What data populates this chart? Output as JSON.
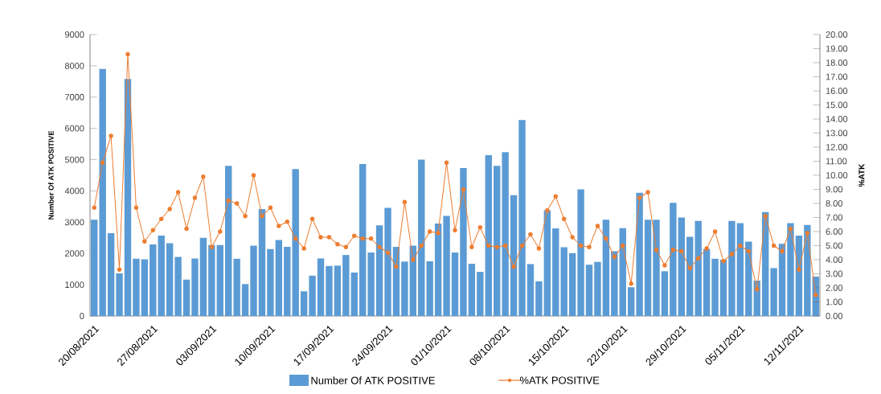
{
  "chart_data": {
    "type": "bar",
    "categories": [
      "20/08/2021",
      null,
      null,
      null,
      null,
      null,
      null,
      "27/08/2021",
      null,
      null,
      null,
      null,
      null,
      null,
      "03/09/2021",
      null,
      null,
      null,
      null,
      null,
      null,
      "10/09/2021",
      null,
      null,
      null,
      null,
      null,
      null,
      "17/09/2021",
      null,
      null,
      null,
      null,
      null,
      null,
      "24/09/2021",
      null,
      null,
      null,
      null,
      null,
      null,
      "01/10/2021",
      null,
      null,
      null,
      null,
      null,
      null,
      "08/10/2021",
      null,
      null,
      null,
      null,
      null,
      null,
      "15/10/2021",
      null,
      null,
      null,
      null,
      null,
      null,
      "22/10/2021",
      null,
      null,
      null,
      null,
      null,
      null,
      "29/10/2021",
      null,
      null,
      null,
      null,
      null,
      null,
      "05/11/2021",
      null,
      null,
      null,
      null,
      null,
      null,
      "12/11/2021",
      null,
      null
    ],
    "ylabel": "Number Of ATK POSITIVE",
    "y2label": "%ATK",
    "ylim": [
      0,
      9000
    ],
    "yticks": [
      0,
      1000,
      2000,
      3000,
      4000,
      5000,
      6000,
      7000,
      8000,
      9000
    ],
    "y2lim": [
      0,
      20
    ],
    "y2ticks": [
      {
        "value": 0,
        "label": "0.00"
      },
      {
        "value": 1,
        "label": "1.00"
      },
      {
        "value": 2,
        "label": "2.00"
      },
      {
        "value": 3,
        "label": "3.00"
      },
      {
        "value": 4,
        "label": "4.00"
      },
      {
        "value": 5,
        "label": "5.00"
      },
      {
        "value": 6,
        "label": "6.00"
      },
      {
        "value": 7,
        "label": "7.00"
      },
      {
        "value": 8,
        "label": "8.00"
      },
      {
        "value": 9,
        "label": "9.00"
      },
      {
        "value": 10,
        "label": "10.00"
      },
      {
        "value": 11,
        "label": "11.00"
      },
      {
        "value": 12,
        "label": "12.00"
      },
      {
        "value": 13,
        "label": "13.00"
      },
      {
        "value": 14,
        "label": "14.00"
      },
      {
        "value": 15,
        "label": "15.00"
      },
      {
        "value": 16,
        "label": "16.00"
      },
      {
        "value": 17,
        "label": "17.00"
      },
      {
        "value": 18,
        "label": "18.00"
      },
      {
        "value": 19,
        "label": "19.00"
      },
      {
        "value": 20,
        "label": "20.00"
      }
    ],
    "legend": "bottom",
    "marker": "circle",
    "series": [
      {
        "name": "Number Of ATK POSITIVE",
        "color": "#5b9bd5",
        "values": [
          3080,
          7900,
          2650,
          1360,
          7580,
          1830,
          1810,
          2290,
          2570,
          2330,
          1890,
          1160,
          1840,
          2500,
          2270,
          2270,
          4800,
          1830,
          1020,
          2250,
          3420,
          2140,
          2430,
          2210,
          4700,
          790,
          1290,
          1840,
          1600,
          1610,
          1950,
          1390,
          4860,
          2030,
          2900,
          3460,
          2210,
          1740,
          2250,
          5000,
          1750,
          2960,
          3200,
          2030,
          4730,
          1670,
          1410,
          5140,
          4800,
          5240,
          3860,
          6270,
          1660,
          1110,
          3380,
          2800,
          2200,
          2010,
          4050,
          1640,
          1730,
          3080,
          2070,
          2810,
          920,
          3940,
          3080,
          3080,
          1430,
          3620,
          3150,
          2530,
          3040,
          2140,
          1830,
          1800,
          3040,
          2970,
          2380,
          1130,
          3320,
          1530,
          2310,
          2970,
          2570,
          2910,
          1260
        ]
      },
      {
        "name": "%ATK POSITIVE",
        "type": "line",
        "axis": "y2",
        "color": "#ed7d31",
        "values": [
          7.7,
          10.9,
          12.8,
          3.3,
          18.6,
          7.7,
          5.3,
          6.1,
          6.9,
          7.6,
          8.8,
          6.2,
          8.4,
          9.9,
          4.9,
          6.0,
          8.2,
          8.0,
          7.1,
          10.0,
          7.1,
          7.7,
          6.4,
          6.7,
          5.5,
          4.8,
          6.9,
          5.6,
          5.6,
          5.1,
          4.9,
          5.7,
          5.5,
          5.5,
          4.9,
          4.5,
          3.5,
          8.1,
          4.0,
          5.0,
          6.0,
          5.9,
          10.9,
          6.1,
          9.0,
          4.9,
          6.3,
          5.0,
          4.9,
          5.0,
          3.5,
          5.0,
          5.8,
          4.8,
          7.5,
          8.5,
          6.9,
          5.6,
          5.0,
          4.9,
          6.4,
          5.5,
          4.2,
          5.0,
          2.3,
          8.4,
          8.8,
          4.7,
          3.6,
          4.7,
          4.6,
          3.4,
          4.1,
          4.8,
          6.0,
          3.9,
          4.4,
          5.0,
          4.6,
          1.9,
          7.1,
          5.0,
          4.6,
          6.2,
          3.3,
          5.9,
          1.5
        ]
      }
    ]
  }
}
